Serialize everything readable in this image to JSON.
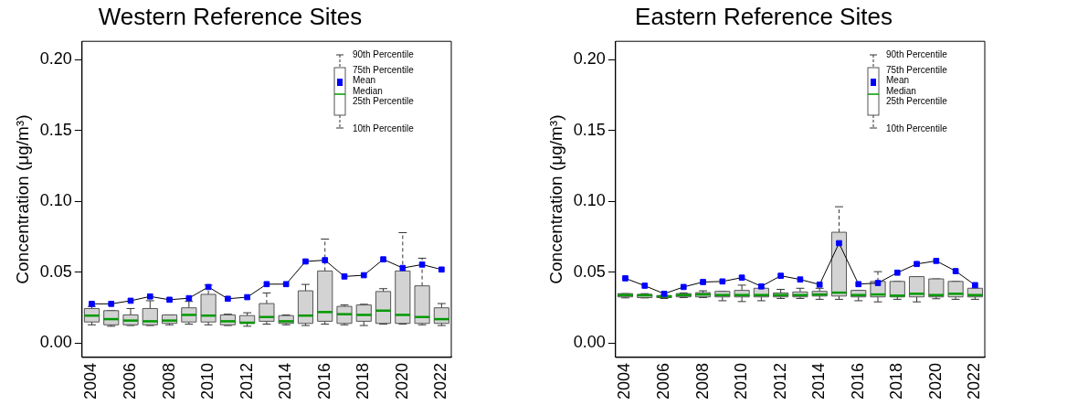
{
  "chart_data": [
    {
      "type": "box",
      "title": "Western Reference Sites",
      "ylabel": "Concentration (μg/m³)",
      "categories": [
        "2004",
        null,
        "2006",
        null,
        "2008",
        null,
        "2010",
        null,
        "2012",
        null,
        "2014",
        null,
        "2016",
        null,
        "2018",
        null,
        "2020",
        null,
        "2022"
      ],
      "ylim": [
        -0.01,
        0.213
      ],
      "yticks": [
        {
          "value": 0,
          "label": "0.00"
        },
        {
          "value": 0.05,
          "label": "0.05"
        },
        {
          "value": 0.1,
          "label": "0.10"
        },
        {
          "value": 0.15,
          "label": "0.15"
        },
        {
          "value": 0.2,
          "label": "0.20"
        }
      ],
      "legend": "top right",
      "grid": false,
      "annotations": [
        "90th Percentile",
        "75th Percentile",
        "Median",
        "25th Percentile",
        "10th Percentile"
      ],
      "series": [
        {
          "type": "box",
          "color": "#d3d3d3",
          "boxes": [
            {
              "low": 0.013,
              "q1": 0.015,
              "median": 0.0195,
              "q3": 0.0245,
              "high": 0.026
            },
            {
              "low": 0.012,
              "q1": 0.013,
              "median": 0.017,
              "q3": 0.023,
              "high": 0.023
            },
            {
              "low": 0.0125,
              "q1": 0.013,
              "median": 0.016,
              "q3": 0.02,
              "high": 0.0245
            },
            {
              "low": 0.0125,
              "q1": 0.013,
              "median": 0.0155,
              "q3": 0.0245,
              "high": 0.03
            },
            {
              "low": 0.013,
              "q1": 0.014,
              "median": 0.016,
              "q3": 0.02,
              "high": 0.02
            },
            {
              "low": 0.0135,
              "q1": 0.015,
              "median": 0.02,
              "q3": 0.025,
              "high": 0.0295
            },
            {
              "low": 0.013,
              "q1": 0.015,
              "median": 0.0195,
              "q3": 0.0345,
              "high": 0.041
            },
            {
              "low": 0.0125,
              "q1": 0.013,
              "median": 0.0155,
              "q3": 0.02,
              "high": 0.0205
            },
            {
              "low": 0.012,
              "q1": 0.014,
              "median": 0.0145,
              "q3": 0.0195,
              "high": 0.0215
            },
            {
              "low": 0.0135,
              "q1": 0.0155,
              "median": 0.0185,
              "q3": 0.028,
              "high": 0.0355
            },
            {
              "low": 0.013,
              "q1": 0.014,
              "median": 0.0155,
              "q3": 0.0195,
              "high": 0.02
            },
            {
              "low": 0.0125,
              "q1": 0.014,
              "median": 0.0195,
              "q3": 0.037,
              "high": 0.0415
            },
            {
              "low": 0.0135,
              "q1": 0.0155,
              "median": 0.022,
              "q3": 0.051,
              "high": 0.0735
            },
            {
              "low": 0.013,
              "q1": 0.014,
              "median": 0.0205,
              "q3": 0.026,
              "high": 0.027
            },
            {
              "low": 0.0125,
              "q1": 0.0155,
              "median": 0.02,
              "q3": 0.027,
              "high": 0.0275
            },
            {
              "low": 0.0135,
              "q1": 0.014,
              "median": 0.023,
              "q3": 0.0365,
              "high": 0.0385
            },
            {
              "low": 0.0135,
              "q1": 0.014,
              "median": 0.02,
              "q3": 0.051,
              "high": 0.078
            },
            {
              "low": 0.013,
              "q1": 0.014,
              "median": 0.0185,
              "q3": 0.0405,
              "high": 0.06
            },
            {
              "low": 0.0125,
              "q1": 0.014,
              "median": 0.017,
              "q3": 0.025,
              "high": 0.028
            }
          ]
        },
        {
          "type": "line",
          "name": "Mean",
          "color": "#0000ff",
          "marker": "square",
          "values": [
            0.0278,
            0.0278,
            0.03,
            0.033,
            0.0307,
            0.0318,
            0.0397,
            0.0314,
            0.0325,
            0.0417,
            0.0417,
            0.0577,
            0.0586,
            0.0471,
            0.048,
            0.0592,
            0.0531,
            0.0555,
            0.052
          ]
        }
      ]
    },
    {
      "type": "box",
      "title": "Eastern Reference Sites",
      "ylabel": "Concentration (μg/m³)",
      "categories": [
        "2004",
        null,
        "2006",
        null,
        "2008",
        null,
        "2010",
        null,
        "2012",
        null,
        "2014",
        null,
        "2016",
        null,
        "2018",
        null,
        "2020",
        null,
        "2022"
      ],
      "ylim": [
        -0.01,
        0.213
      ],
      "yticks": [
        {
          "value": 0,
          "label": "0.00"
        },
        {
          "value": 0.05,
          "label": "0.05"
        },
        {
          "value": 0.1,
          "label": "0.10"
        },
        {
          "value": 0.15,
          "label": "0.15"
        },
        {
          "value": 0.2,
          "label": "0.20"
        }
      ],
      "legend": "top right",
      "grid": false,
      "annotations": [
        "90th Percentile",
        "75th Percentile",
        "Median",
        "25th Percentile",
        "10th Percentile"
      ],
      "series": [
        {
          "type": "box",
          "color": "#d3d3d3",
          "boxes": [
            {
              "low": 0.032,
              "q1": 0.0327,
              "median": 0.034,
              "q3": 0.035,
              "high": 0.035
            },
            {
              "low": 0.032,
              "q1": 0.0322,
              "median": 0.0338,
              "q3": 0.0345,
              "high": 0.035
            },
            {
              "low": 0.0316,
              "q1": 0.0322,
              "median": 0.0331,
              "q3": 0.0336,
              "high": 0.0338
            },
            {
              "low": 0.0322,
              "q1": 0.0327,
              "median": 0.034,
              "q3": 0.035,
              "high": 0.0355
            },
            {
              "low": 0.0322,
              "q1": 0.0327,
              "median": 0.0344,
              "q3": 0.0357,
              "high": 0.037
            },
            {
              "low": 0.03,
              "q1": 0.0327,
              "median": 0.034,
              "q3": 0.0366,
              "high": 0.0366
            },
            {
              "low": 0.0294,
              "q1": 0.0327,
              "median": 0.034,
              "q3": 0.0373,
              "high": 0.041
            },
            {
              "low": 0.03,
              "q1": 0.0327,
              "median": 0.034,
              "q3": 0.0388,
              "high": 0.0388
            },
            {
              "low": 0.0316,
              "q1": 0.0327,
              "median": 0.034,
              "q3": 0.0355,
              "high": 0.038
            },
            {
              "low": 0.0316,
              "q1": 0.0327,
              "median": 0.034,
              "q3": 0.0362,
              "high": 0.0388
            },
            {
              "low": 0.031,
              "q1": 0.0333,
              "median": 0.0344,
              "q3": 0.0366,
              "high": 0.0388
            },
            {
              "low": 0.031,
              "q1": 0.0333,
              "median": 0.0357,
              "q3": 0.0783,
              "high": 0.0963
            },
            {
              "low": 0.03,
              "q1": 0.0327,
              "median": 0.034,
              "q3": 0.0373,
              "high": 0.0373
            },
            {
              "low": 0.0292,
              "q1": 0.0327,
              "median": 0.0344,
              "q3": 0.0436,
              "high": 0.0505
            },
            {
              "low": 0.031,
              "q1": 0.0327,
              "median": 0.0336,
              "q3": 0.0436,
              "high": 0.0436
            },
            {
              "low": 0.0292,
              "q1": 0.0327,
              "median": 0.0349,
              "q3": 0.047,
              "high": 0.047
            },
            {
              "low": 0.0314,
              "q1": 0.0327,
              "median": 0.034,
              "q3": 0.0454,
              "high": 0.0454
            },
            {
              "low": 0.031,
              "q1": 0.0327,
              "median": 0.0349,
              "q3": 0.0436,
              "high": 0.0436
            },
            {
              "low": 0.031,
              "q1": 0.0327,
              "median": 0.034,
              "q3": 0.0388,
              "high": 0.0388
            }
          ]
        },
        {
          "type": "line",
          "name": "Mean",
          "color": "#0000ff",
          "marker": "square",
          "values": [
            0.0458,
            0.0406,
            0.0349,
            0.0397,
            0.0432,
            0.0436,
            0.0463,
            0.0401,
            0.0476,
            0.045,
            0.0414,
            0.0706,
            0.0417,
            0.0425,
            0.0498,
            0.0559,
            0.0581,
            0.0509,
            0.041
          ]
        }
      ]
    }
  ]
}
